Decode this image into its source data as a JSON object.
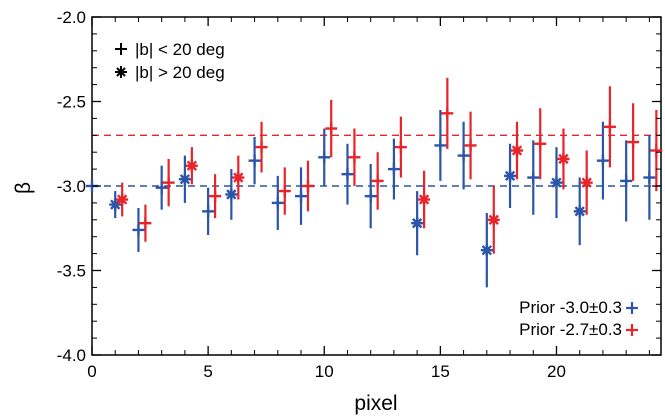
{
  "chart_data": {
    "type": "scatter",
    "xlabel": "pixel",
    "ylabel": "β",
    "xlim": [
      0,
      24.5
    ],
    "ylim": [
      -4.0,
      -2.0
    ],
    "x_ticks": [
      0,
      5,
      10,
      15,
      20
    ],
    "x_tick_labels": [
      "0",
      "5",
      "10",
      "15",
      "20"
    ],
    "y_ticks": [
      -2.0,
      -2.5,
      -3.0,
      -3.5,
      -4.0
    ],
    "y_tick_labels": [
      "-2.0",
      "-2.5",
      "-3.0",
      "-3.5",
      "-4.0"
    ],
    "grid": false,
    "marker_legend": [
      {
        "marker": "plus",
        "label": "|b| < 20 deg"
      },
      {
        "marker": "asterisk",
        "label": "|b| > 20 deg"
      }
    ],
    "series": [
      {
        "name": "Prior -3.0±0.3",
        "color": "#2b55a8",
        "prior": -3.0,
        "points": [
          {
            "x": 0,
            "y": -3.0,
            "err": 0.0,
            "marker": "plus"
          },
          {
            "x": 1,
            "y": -3.11,
            "err": 0.08,
            "marker": "asterisk"
          },
          {
            "x": 2,
            "y": -3.26,
            "err": 0.13,
            "marker": "plus"
          },
          {
            "x": 3,
            "y": -3.01,
            "err": 0.13,
            "marker": "plus"
          },
          {
            "x": 4,
            "y": -2.96,
            "err": 0.14,
            "marker": "asterisk"
          },
          {
            "x": 5,
            "y": -3.15,
            "err": 0.14,
            "marker": "plus"
          },
          {
            "x": 6,
            "y": -3.05,
            "err": 0.15,
            "marker": "asterisk"
          },
          {
            "x": 7,
            "y": -2.85,
            "err": 0.14,
            "marker": "plus"
          },
          {
            "x": 8,
            "y": -3.1,
            "err": 0.16,
            "marker": "plus"
          },
          {
            "x": 9,
            "y": -3.06,
            "err": 0.17,
            "marker": "plus"
          },
          {
            "x": 10,
            "y": -2.83,
            "err": 0.17,
            "marker": "plus"
          },
          {
            "x": 11,
            "y": -2.93,
            "err": 0.18,
            "marker": "plus"
          },
          {
            "x": 12,
            "y": -3.06,
            "err": 0.19,
            "marker": "plus"
          },
          {
            "x": 13,
            "y": -2.9,
            "err": 0.18,
            "marker": "plus"
          },
          {
            "x": 14,
            "y": -3.22,
            "err": 0.19,
            "marker": "asterisk"
          },
          {
            "x": 15,
            "y": -2.76,
            "err": 0.21,
            "marker": "plus"
          },
          {
            "x": 16,
            "y": -2.82,
            "err": 0.2,
            "marker": "plus"
          },
          {
            "x": 17,
            "y": -3.38,
            "err": 0.22,
            "marker": "asterisk"
          },
          {
            "x": 18,
            "y": -2.94,
            "err": 0.19,
            "marker": "asterisk"
          },
          {
            "x": 19,
            "y": -2.95,
            "err": 0.22,
            "marker": "plus"
          },
          {
            "x": 20,
            "y": -2.98,
            "err": 0.21,
            "marker": "asterisk"
          },
          {
            "x": 21,
            "y": -3.15,
            "err": 0.2,
            "marker": "asterisk"
          },
          {
            "x": 22,
            "y": -2.85,
            "err": 0.23,
            "marker": "plus"
          },
          {
            "x": 23,
            "y": -2.97,
            "err": 0.24,
            "marker": "plus"
          },
          {
            "x": 24,
            "y": -2.95,
            "err": 0.25,
            "marker": "plus"
          }
        ]
      },
      {
        "name": "Prior -2.7±0.3",
        "color": "#e8242a",
        "prior": -2.7,
        "points": [
          {
            "x": 1.3,
            "y": -3.08,
            "err": 0.1,
            "marker": "asterisk"
          },
          {
            "x": 2.3,
            "y": -3.22,
            "err": 0.11,
            "marker": "plus"
          },
          {
            "x": 3.3,
            "y": -2.98,
            "err": 0.14,
            "marker": "plus"
          },
          {
            "x": 4.3,
            "y": -2.88,
            "err": 0.11,
            "marker": "asterisk"
          },
          {
            "x": 5.3,
            "y": -3.06,
            "err": 0.13,
            "marker": "plus"
          },
          {
            "x": 6.3,
            "y": -2.95,
            "err": 0.13,
            "marker": "asterisk"
          },
          {
            "x": 7.3,
            "y": -2.77,
            "err": 0.15,
            "marker": "plus"
          },
          {
            "x": 8.3,
            "y": -3.03,
            "err": 0.14,
            "marker": "plus"
          },
          {
            "x": 9.3,
            "y": -3.0,
            "err": 0.15,
            "marker": "plus"
          },
          {
            "x": 10.3,
            "y": -2.66,
            "err": 0.17,
            "marker": "plus"
          },
          {
            "x": 11.3,
            "y": -2.83,
            "err": 0.17,
            "marker": "plus"
          },
          {
            "x": 12.3,
            "y": -2.97,
            "err": 0.17,
            "marker": "plus"
          },
          {
            "x": 13.3,
            "y": -2.77,
            "err": 0.18,
            "marker": "plus"
          },
          {
            "x": 14.3,
            "y": -3.08,
            "err": 0.17,
            "marker": "asterisk"
          },
          {
            "x": 15.3,
            "y": -2.57,
            "err": 0.21,
            "marker": "plus"
          },
          {
            "x": 16.3,
            "y": -2.76,
            "err": 0.2,
            "marker": "plus"
          },
          {
            "x": 17.3,
            "y": -3.2,
            "err": 0.2,
            "marker": "asterisk"
          },
          {
            "x": 18.3,
            "y": -2.79,
            "err": 0.17,
            "marker": "asterisk"
          },
          {
            "x": 19.3,
            "y": -2.75,
            "err": 0.21,
            "marker": "plus"
          },
          {
            "x": 20.3,
            "y": -2.84,
            "err": 0.18,
            "marker": "asterisk"
          },
          {
            "x": 21.3,
            "y": -2.98,
            "err": 0.19,
            "marker": "asterisk"
          },
          {
            "x": 22.3,
            "y": -2.65,
            "err": 0.24,
            "marker": "plus"
          },
          {
            "x": 23.3,
            "y": -2.74,
            "err": 0.23,
            "marker": "plus"
          },
          {
            "x": 24.3,
            "y": -2.79,
            "err": 0.24,
            "marker": "plus"
          }
        ]
      }
    ]
  }
}
